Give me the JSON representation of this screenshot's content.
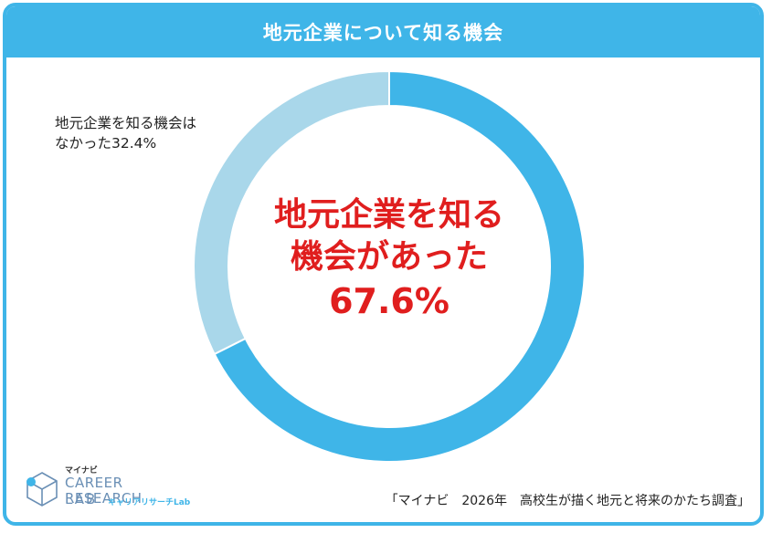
{
  "title": "地元企業について知る機会",
  "colors": {
    "accent": "#3fb5e8",
    "slice_primary": "#3fb5e8",
    "slice_secondary": "#a9d7ea",
    "highlight_text": "#e01e1e"
  },
  "chart_data": {
    "type": "pie",
    "title": "地元企業について知る機会",
    "donut": true,
    "slices": [
      {
        "name": "地元企業を知る機会があった",
        "value": 67.6,
        "color": "#3fb5e8"
      },
      {
        "name": "地元企業を知る機会はなかった",
        "value": 32.4,
        "color": "#a9d7ea"
      }
    ],
    "labels": {
      "outer_line1": "地元企業を知る機会は",
      "outer_line2": "なかった32.4%",
      "center_line1": "地元企業を知る",
      "center_line2": "機会があった",
      "center_pct": "67.6%"
    }
  },
  "logo": {
    "small": "マイナビ",
    "line1": "CAREER RESEARCH",
    "line2": "LAB",
    "kana": "キャリアリサーチLab",
    "icon": "cube-logo-icon"
  },
  "source": "「マイナビ　2026年　高校生が描く地元と将来のかたち調査」"
}
